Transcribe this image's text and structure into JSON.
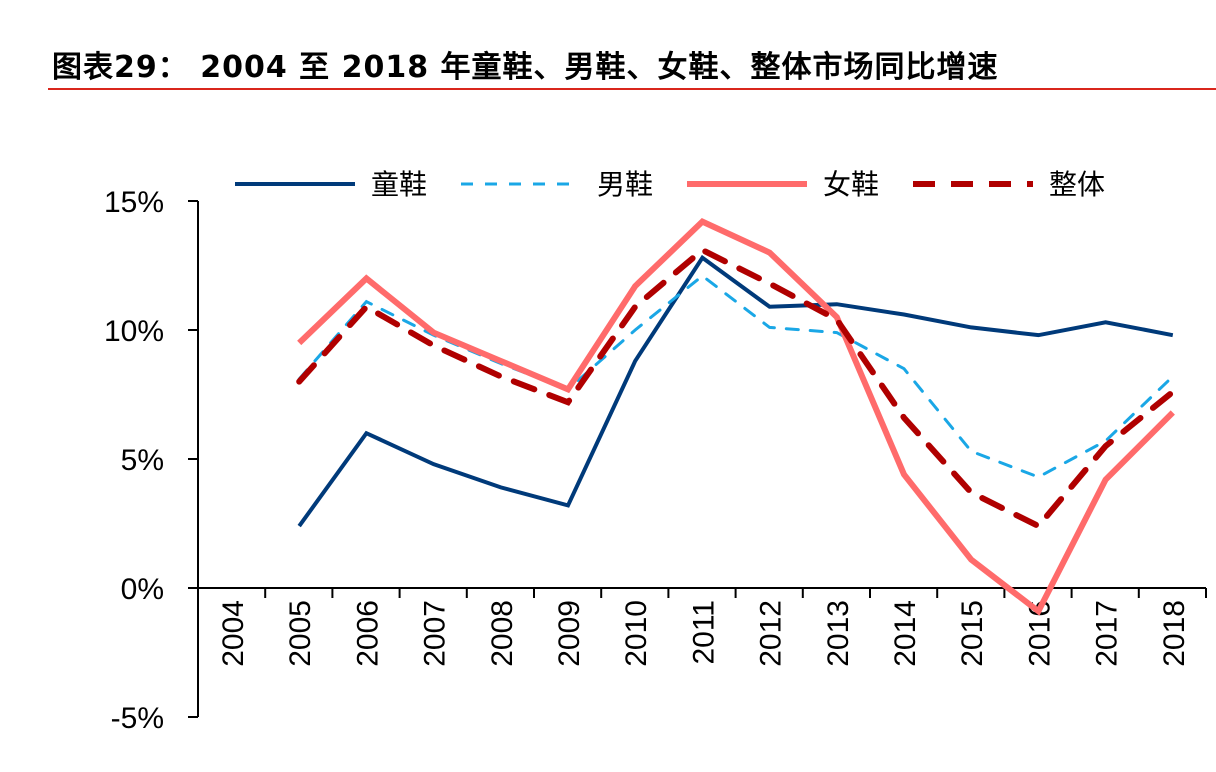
{
  "title": "图表29：  2004 至 2018 年童鞋、男鞋、女鞋、整体市场同比增速",
  "chart_data": {
    "type": "line",
    "title": "",
    "xlabel": "",
    "ylabel": "",
    "categories": [
      "2004",
      "2005",
      "2006",
      "2007",
      "2008",
      "2009",
      "2010",
      "2011",
      "2012",
      "2013",
      "2014",
      "2015",
      "2016",
      "2017",
      "2018"
    ],
    "ylim": [
      -5,
      15
    ],
    "yticks": [
      "-5%",
      "0%",
      "5%",
      "10%",
      "15%"
    ],
    "ytick_values": [
      -5,
      0,
      5,
      10,
      15
    ],
    "grid": false,
    "legend_placement": "top",
    "series": [
      {
        "name": "童鞋",
        "color": "#003a7a",
        "style": "solid",
        "values": [
          null,
          2.4,
          6.0,
          4.8,
          3.9,
          3.2,
          8.8,
          12.8,
          10.9,
          11.0,
          10.6,
          10.1,
          9.8,
          10.3,
          9.8
        ]
      },
      {
        "name": "男鞋",
        "color": "#1aa7e6",
        "style": "dashed",
        "values": [
          null,
          8.1,
          11.1,
          9.8,
          8.7,
          7.7,
          10.0,
          12.1,
          10.1,
          9.9,
          8.5,
          5.3,
          4.3,
          5.7,
          8.2
        ]
      },
      {
        "name": "女鞋",
        "color": "#ff6b6b",
        "style": "solid-thick",
        "values": [
          null,
          9.5,
          12.0,
          9.9,
          8.8,
          7.7,
          11.7,
          14.2,
          13.0,
          10.5,
          4.4,
          1.1,
          -0.9,
          4.2,
          6.8
        ]
      },
      {
        "name": "整体",
        "color": "#b00000",
        "style": "dashed-thick",
        "values": [
          null,
          8.0,
          10.9,
          9.4,
          8.2,
          7.2,
          10.9,
          13.1,
          11.8,
          10.4,
          6.6,
          3.7,
          2.4,
          5.5,
          7.6
        ]
      }
    ]
  }
}
